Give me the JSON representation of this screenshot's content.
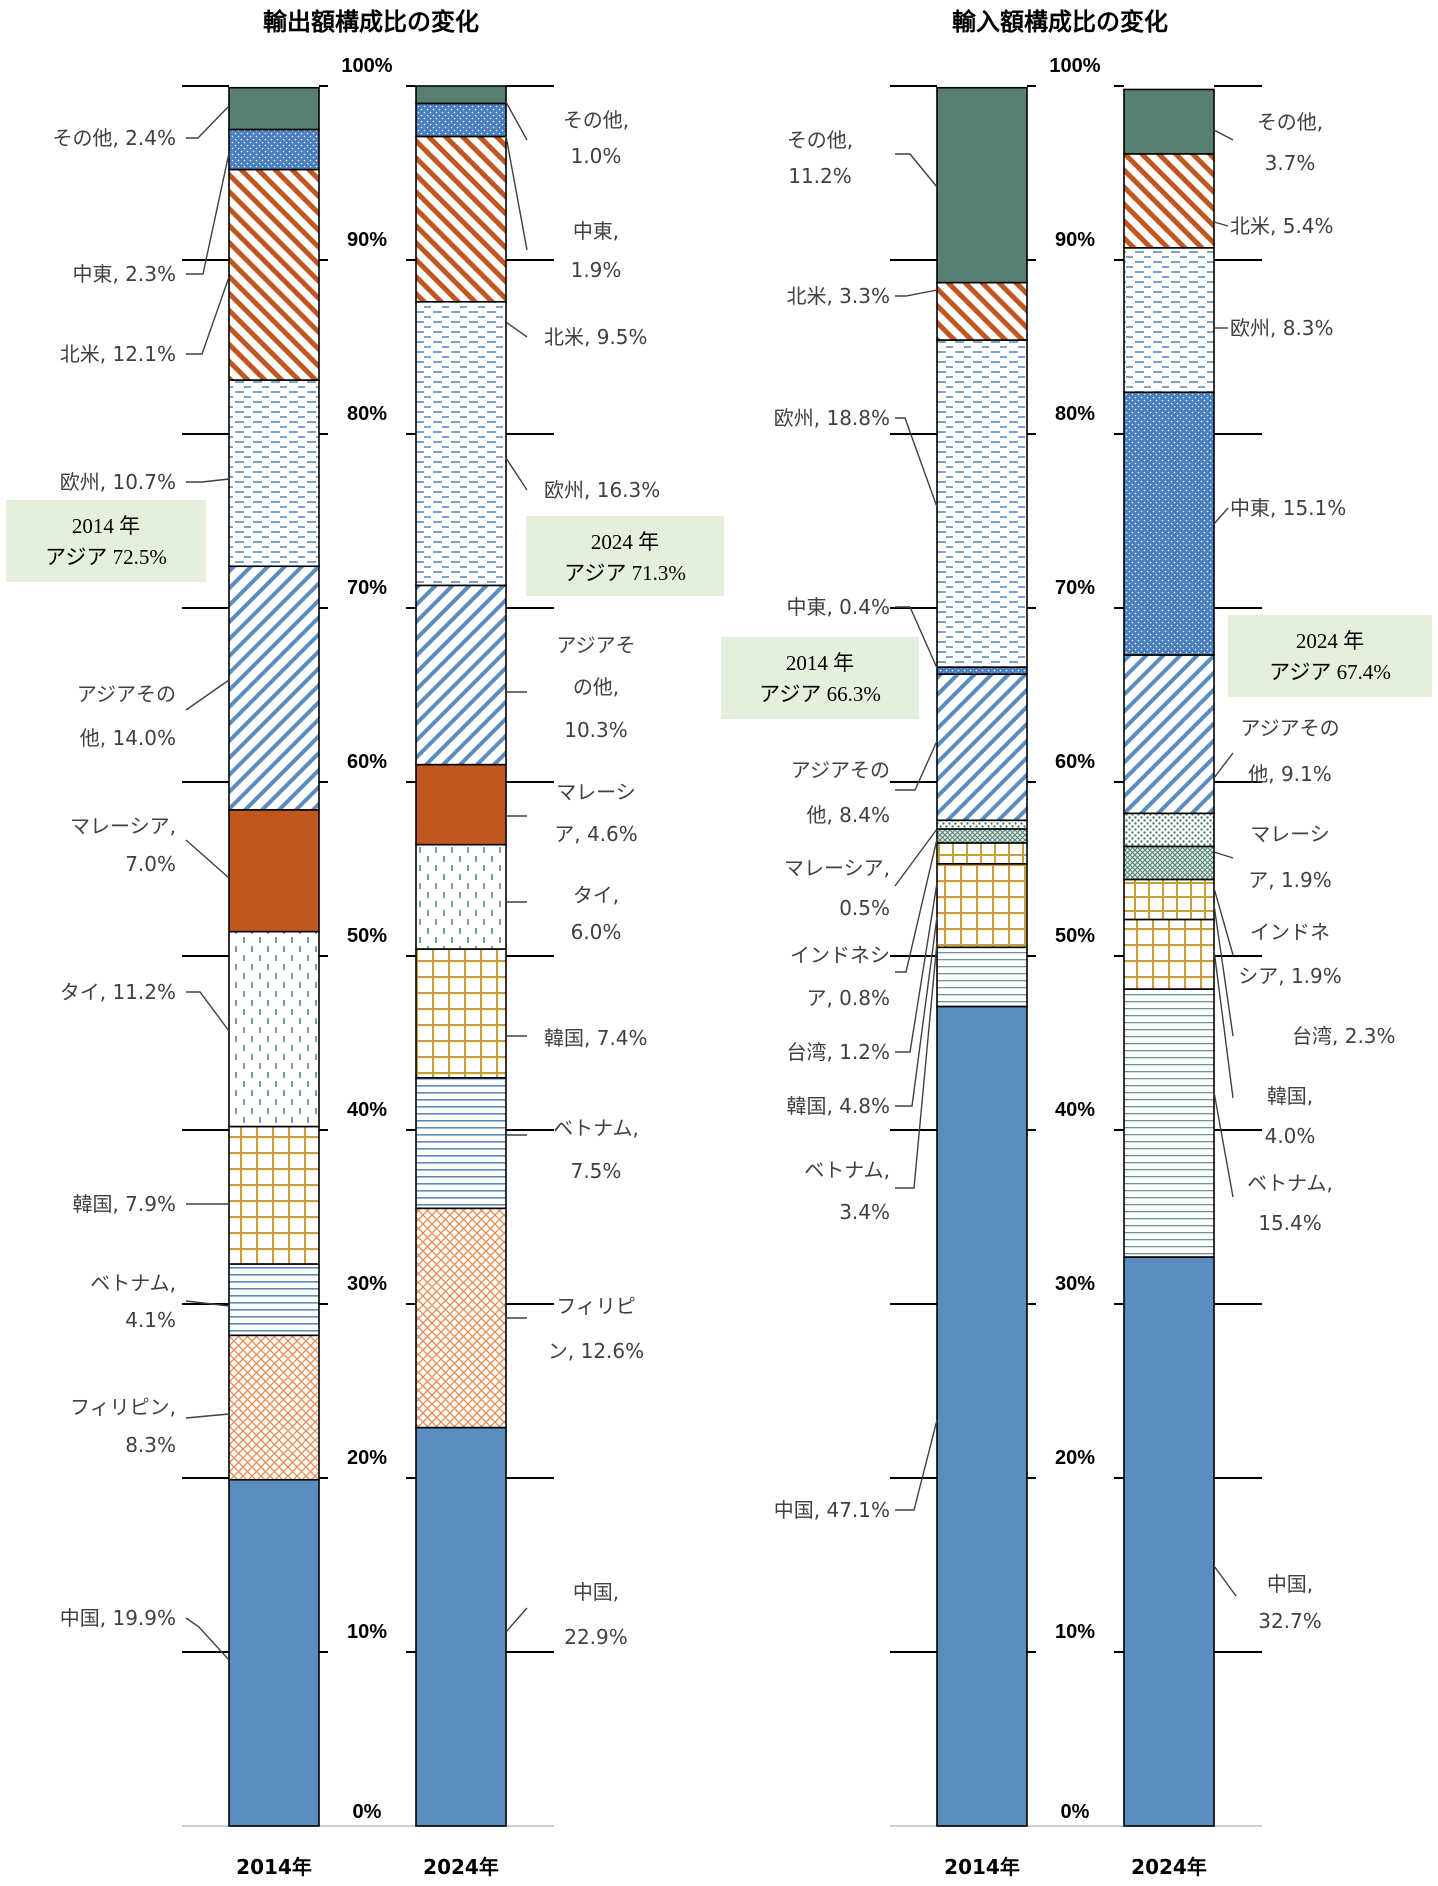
{
  "colors": {
    "china": "#5B8DBE",
    "other": "#577F72",
    "orange": "#C0571F",
    "green_box": "#E4F0DB"
  },
  "chart_data": [
    {
      "type": "bar",
      "stacked": true,
      "title": "輸出額構成比の変化",
      "categories": [
        "2014年",
        "2024年"
      ],
      "y_ticks": [
        "0%",
        "10%",
        "20%",
        "30%",
        "40%",
        "50%",
        "60%",
        "70%",
        "80%",
        "90%",
        "100%"
      ],
      "ylim": [
        0,
        100
      ],
      "series": [
        {
          "key": "china",
          "values": [
            19.9,
            22.9
          ],
          "labels": [
            [
              "中国, 19.9%"
            ],
            [
              "中国,",
              "22.9%"
            ]
          ]
        },
        {
          "key": "philippines",
          "values": [
            8.3,
            12.6
          ],
          "labels": [
            [
              "フィリピン,",
              "8.3%"
            ],
            [
              "フィリピ",
              "ン, 12.6%"
            ]
          ]
        },
        {
          "key": "vietnam",
          "values": [
            4.1,
            7.5
          ],
          "labels": [
            [
              "ベトナム,",
              "4.1%"
            ],
            [
              "ベトナム,",
              "7.5%"
            ]
          ]
        },
        {
          "key": "korea",
          "values": [
            7.9,
            7.4
          ],
          "labels": [
            [
              "韓国, 7.9%"
            ],
            [
              "韓国, 7.4%"
            ]
          ]
        },
        {
          "key": "thai",
          "values": [
            11.2,
            6.0
          ],
          "labels": [
            [
              "タイ, 11.2%"
            ],
            [
              "タイ,",
              "6.0%"
            ]
          ]
        },
        {
          "key": "malaysia",
          "values": [
            7.0,
            4.6
          ],
          "labels": [
            [
              "マレーシア,",
              "7.0%"
            ],
            [
              "マレーシ",
              "ア, 4.6%"
            ]
          ]
        },
        {
          "key": "asia_other",
          "values": [
            14.0,
            10.3
          ],
          "labels": [
            [
              "アジアその",
              "他, 14.0%"
            ],
            [
              "アジアそ",
              "の他,",
              "10.3%"
            ]
          ]
        },
        {
          "key": "europe",
          "values": [
            10.7,
            16.3
          ],
          "labels": [
            [
              "欧州, 10.7%"
            ],
            [
              "欧州, 16.3%"
            ]
          ]
        },
        {
          "key": "na",
          "values": [
            12.1,
            9.5
          ],
          "labels": [
            [
              "北米, 12.1%"
            ],
            [
              "北米, 9.5%"
            ]
          ]
        },
        {
          "key": "me",
          "values": [
            2.3,
            1.9
          ],
          "labels": [
            [
              "中東, 2.3%"
            ],
            [
              "中東,",
              "1.9%"
            ]
          ]
        },
        {
          "key": "other",
          "values": [
            2.4,
            1.0
          ],
          "labels": [
            [
              "その他, 2.4%"
            ],
            [
              "その他,",
              "1.0%"
            ]
          ]
        }
      ],
      "annotations": [
        {
          "lines": [
            "2014 年",
            "アジア 72.5%"
          ]
        },
        {
          "lines": [
            "2024 年",
            "アジア 71.3%"
          ]
        }
      ]
    },
    {
      "type": "bar",
      "stacked": true,
      "title": "輸入額構成比の変化",
      "categories": [
        "2014年",
        "2024年"
      ],
      "y_ticks": [
        "0%",
        "10%",
        "20%",
        "30%",
        "40%",
        "50%",
        "60%",
        "70%",
        "80%",
        "90%",
        "100%"
      ],
      "ylim": [
        0,
        100
      ],
      "series": [
        {
          "key": "china",
          "values": [
            47.1,
            32.7
          ],
          "labels": [
            [
              "中国, 47.1%"
            ],
            [
              "中国,",
              "32.7%"
            ]
          ]
        },
        {
          "key": "vietnam",
          "values": [
            3.4,
            15.4
          ],
          "labels": [
            [
              "ベトナム,",
              "3.4%"
            ],
            [
              "ベトナム,",
              "15.4%"
            ]
          ]
        },
        {
          "key": "korea",
          "values": [
            4.8,
            4.0
          ],
          "labels": [
            [
              "韓国, 4.8%"
            ],
            [
              "韓国,",
              "4.0%"
            ]
          ]
        },
        {
          "key": "taiwan",
          "values": [
            1.2,
            2.3
          ],
          "labels": [
            [
              "台湾, 1.2%"
            ],
            [
              "台湾, 2.3%"
            ]
          ]
        },
        {
          "key": "indonesia",
          "values": [
            0.8,
            1.9
          ],
          "labels": [
            [
              "インドネシ",
              "ア, 0.8%"
            ],
            [
              "インドネ",
              "シア, 1.9%"
            ]
          ]
        },
        {
          "key": "malaysia",
          "values": [
            0.5,
            1.9
          ],
          "labels": [
            [
              "マレーシア,",
              "0.5%"
            ],
            [
              "マレーシ",
              "ア, 1.9%"
            ]
          ]
        },
        {
          "key": "asia_other",
          "values": [
            8.4,
            9.1
          ],
          "labels": [
            [
              "アジアその",
              "他, 8.4%"
            ],
            [
              "アジアその",
              "他, 9.1%"
            ]
          ]
        },
        {
          "key": "me",
          "values": [
            0.4,
            15.1
          ],
          "labels": [
            [
              "中東, 0.4%"
            ],
            [
              "中東, 15.1%"
            ]
          ]
        },
        {
          "key": "europe",
          "values": [
            18.8,
            8.3
          ],
          "labels": [
            [
              "欧州, 18.8%"
            ],
            [
              "欧州, 8.3%"
            ]
          ]
        },
        {
          "key": "na",
          "values": [
            3.3,
            5.4
          ],
          "labels": [
            [
              "北米, 3.3%"
            ],
            [
              "北米, 5.4%"
            ]
          ]
        },
        {
          "key": "other",
          "values": [
            11.2,
            3.7
          ],
          "labels": [
            [
              "その他,",
              "11.2%"
            ],
            [
              "その他,",
              "3.7%"
            ]
          ]
        }
      ],
      "annotations": [
        {
          "lines": [
            "2014 年",
            "アジア 66.3%"
          ]
        },
        {
          "lines": [
            "2024 年",
            "アジア 67.4%"
          ]
        }
      ]
    }
  ]
}
